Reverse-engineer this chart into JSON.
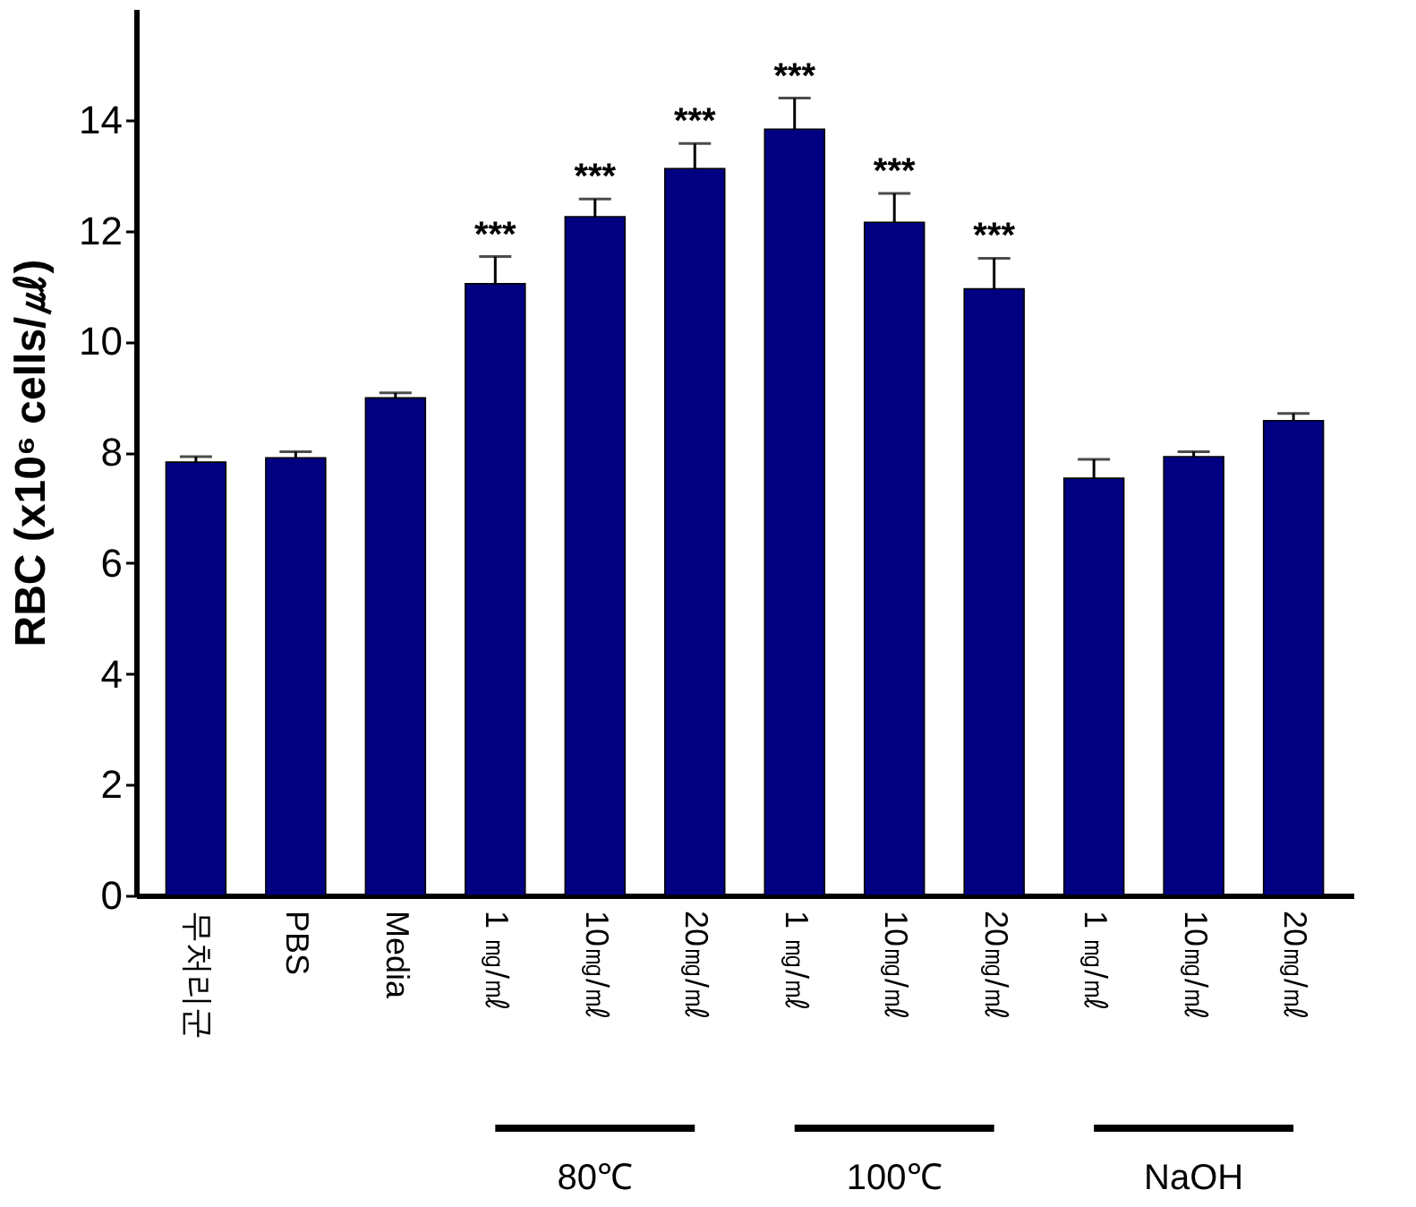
{
  "chart_data": {
    "type": "bar",
    "ylabel": "RBC (x10⁶ cells/㎕)",
    "categories": [
      "무처리군",
      "PBS",
      "Media",
      "1 ㎎/㎖",
      "10㎎/㎖",
      "20㎎/㎖",
      "1 ㎎/㎖",
      "10㎎/㎖",
      "20㎎/㎖",
      "1 ㎎/㎖",
      "10㎎/㎖",
      "20㎎/㎖"
    ],
    "values": [
      7.82,
      7.9,
      8.98,
      11.04,
      12.25,
      13.12,
      13.83,
      12.15,
      10.95,
      7.53,
      7.92,
      8.57
    ],
    "errors": [
      [
        7.82,
        7.92
      ],
      [
        7.9,
        8.01
      ],
      [
        8.98,
        9.07
      ],
      [
        11.04,
        11.53
      ],
      [
        12.25,
        12.57
      ],
      [
        13.12,
        13.57
      ],
      [
        13.83,
        14.39
      ],
      [
        12.15,
        12.67
      ],
      [
        10.95,
        11.5
      ],
      [
        7.53,
        7.87
      ],
      [
        7.92,
        8.01
      ],
      [
        8.57,
        8.7
      ]
    ],
    "color": "#000080",
    "ylim": [
      0,
      16
    ],
    "yticks": [
      0,
      2,
      4,
      6,
      8,
      10,
      12,
      14
    ],
    "grid": false,
    "annotations": [
      "***",
      "***",
      "***",
      "***",
      "***",
      "***",
      "80℃",
      "100℃",
      "NaOH"
    ]
  }
}
